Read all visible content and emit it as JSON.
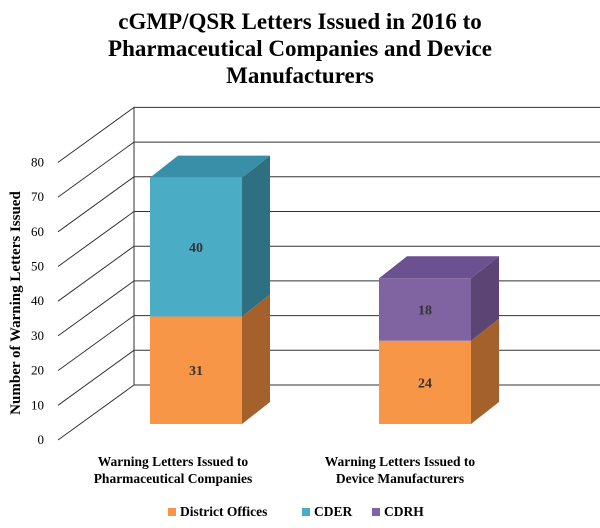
{
  "chart_data": {
    "type": "bar",
    "stacked": true,
    "three_d": true,
    "title_lines": [
      "cGMP/QSR Letters Issued in 2016 to",
      "Pharmaceutical Companies and Device",
      "Manufacturers"
    ],
    "ylabel": "Number of Warning Letters Issued",
    "xlabel": "",
    "ylim": [
      0,
      80
    ],
    "yticks": [
      0,
      10,
      20,
      30,
      40,
      50,
      60,
      70,
      80
    ],
    "grid": true,
    "legend_position": "bottom",
    "categories": [
      [
        "Warning Letters Issued to",
        "Pharmaceutical Companies"
      ],
      [
        "Warning Letters Issued to",
        "Device Manufacturers"
      ]
    ],
    "series": [
      {
        "name": "District Offices",
        "color": "#F79646",
        "side": "#A5612C",
        "top": "#FBB47A",
        "values": [
          31,
          24
        ]
      },
      {
        "name": "CDER",
        "color": "#4BACC6",
        "side": "#2F6F82",
        "top": "#3A8FA8",
        "values": [
          40,
          null
        ]
      },
      {
        "name": "CDRH",
        "color": "#8064A2",
        "side": "#5A4574",
        "top": "#6B5190",
        "values": [
          null,
          18
        ]
      }
    ]
  }
}
